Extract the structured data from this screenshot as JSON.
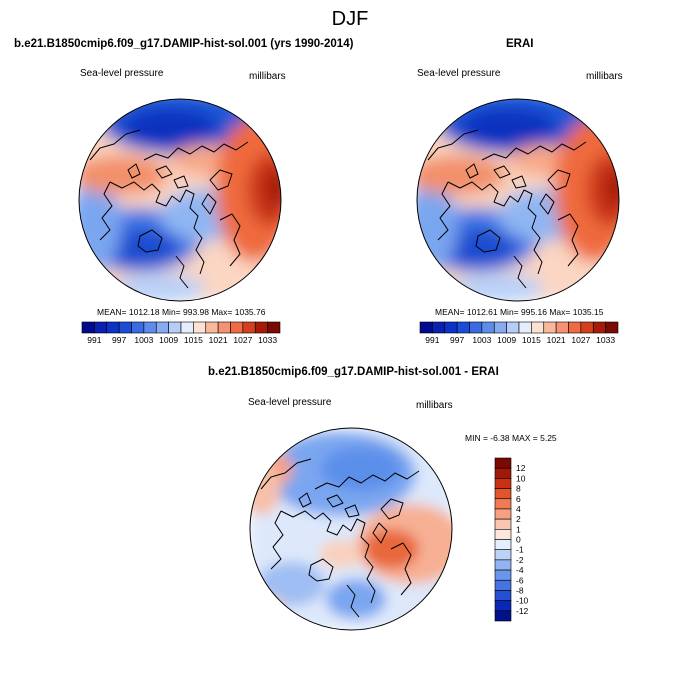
{
  "page_title": "DJF",
  "colors": {
    "ocean_edge": "#000000",
    "background": "#ffffff"
  },
  "chart_data": [
    {
      "type": "heatmap",
      "projection": "polar-stereographic (north pole)",
      "title": "b.e21.B1850cmip6.f09_g17.DAMIP-hist-sol.001 (yrs 1990-2014)",
      "left_label": "Sea-level pressure",
      "right_label": "millibars",
      "stats": "MEAN= 1012.18  Min= 993.98  Max= 1035.76",
      "mean": 1012.18,
      "min": 993.98,
      "max": 1035.76,
      "colorbar_ticks": [
        "991",
        "997",
        "1003",
        "1009",
        "1015",
        "1021",
        "1027",
        "1033"
      ],
      "colorbar_levels": [
        991,
        994,
        997,
        1000,
        1003,
        1006,
        1009,
        1012,
        1015,
        1018,
        1021,
        1024,
        1027,
        1030,
        1033
      ],
      "colorbar_orientation": "horizontal",
      "colorbar_placement": "bottom"
    },
    {
      "type": "heatmap",
      "projection": "polar-stereographic (north pole)",
      "title": "ERAI",
      "left_label": "Sea-level pressure",
      "right_label": "millibars",
      "stats": "MEAN= 1012.61  Min= 995.16  Max= 1035.15",
      "mean": 1012.61,
      "min": 995.16,
      "max": 1035.15,
      "colorbar_ticks": [
        "991",
        "997",
        "1003",
        "1009",
        "1015",
        "1021",
        "1027",
        "1033"
      ],
      "colorbar_levels": [
        991,
        994,
        997,
        1000,
        1003,
        1006,
        1009,
        1012,
        1015,
        1018,
        1021,
        1024,
        1027,
        1030,
        1033
      ],
      "colorbar_orientation": "horizontal",
      "colorbar_placement": "bottom"
    },
    {
      "type": "heatmap",
      "projection": "polar-stereographic (north pole)",
      "title": "b.e21.B1850cmip6.f09_g17.DAMIP-hist-sol.001 - ERAI",
      "left_label": "Sea-level pressure",
      "right_label": "millibars",
      "stats": "MIN =  -6.38 MAX =   5.25",
      "min": -6.38,
      "max": 5.25,
      "colorbar_ticks": [
        "12",
        "10",
        "8",
        "6",
        "4",
        "2",
        "1",
        "0",
        "-1",
        "-2",
        "-4",
        "-6",
        "-8",
        "-10",
        "-12"
      ],
      "colorbar_orientation": "vertical",
      "colorbar_placement": "right"
    }
  ]
}
